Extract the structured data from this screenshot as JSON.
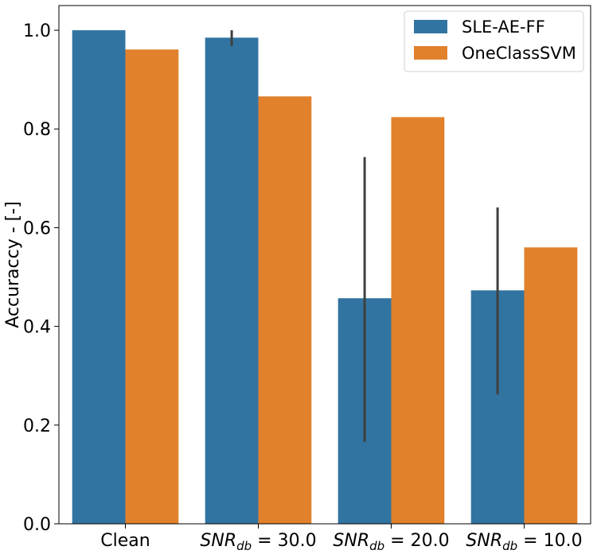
{
  "chart_data": {
    "type": "bar",
    "categories": [
      {
        "label": "Clean",
        "math": false
      },
      {
        "label": "SNR_db = 30.0",
        "math": true,
        "base": "SNR",
        "sub": "db",
        "rest": " = 30.0"
      },
      {
        "label": "SNR_db = 20.0",
        "math": true,
        "base": "SNR",
        "sub": "db",
        "rest": " = 20.0"
      },
      {
        "label": "SNR_db = 10.0",
        "math": true,
        "base": "SNR",
        "sub": "db",
        "rest": " = 10.0"
      }
    ],
    "series": [
      {
        "name": "SLE-AE-FF",
        "color": "#3274a1",
        "values": [
          1.0,
          0.985,
          0.457,
          0.473
        ],
        "error_low": [
          1.0,
          0.968,
          0.166,
          0.262
        ],
        "error_high": [
          1.0,
          1.0,
          0.743,
          0.641
        ]
      },
      {
        "name": "OneClassSVM",
        "color": "#e1812c",
        "values": [
          0.961,
          0.866,
          0.824,
          0.56
        ]
      }
    ],
    "title": "",
    "xlabel": "",
    "ylabel": "Accuraccy - [-]",
    "ylim": [
      0,
      1.05
    ],
    "yticks": [
      "0.0",
      "0.2",
      "0.4",
      "0.6",
      "0.8",
      "1.0"
    ],
    "grid": false,
    "legend_position": "top-right",
    "error_bar_color": "#3f3f3f"
  }
}
